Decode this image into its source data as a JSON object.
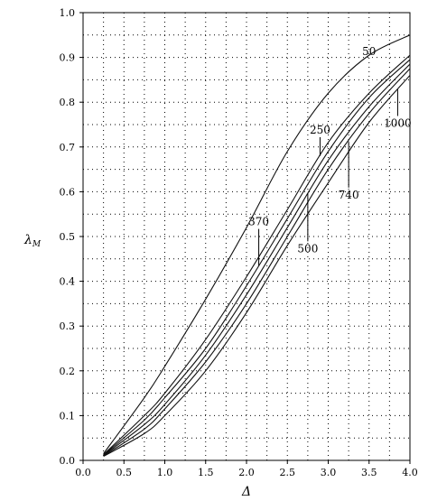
{
  "chart_data": {
    "type": "line",
    "xlabel": "Δ",
    "ylabel_main": "λ",
    "ylabel_sub": "M",
    "xlim": [
      0.0,
      4.0
    ],
    "ylim": [
      0.0,
      1.0
    ],
    "grid": true,
    "grid_style": "dotted",
    "x_ticks": [
      "0.0",
      "0.5",
      "1.0",
      "1.5",
      "2.0",
      "2.5",
      "3.0",
      "3.5",
      "4.0"
    ],
    "y_ticks": [
      "0.0",
      "0.1",
      "0.2",
      "0.3",
      "0.4",
      "0.5",
      "0.6",
      "0.7",
      "0.8",
      "0.9",
      "1.0"
    ],
    "series": [
      {
        "name": "50",
        "x": [
          0.25,
          0.75,
          1.0,
          1.5,
          2.0,
          2.5,
          3.0,
          3.5,
          4.0
        ],
        "values": [
          0.015,
          0.14,
          0.21,
          0.36,
          0.52,
          0.69,
          0.82,
          0.905,
          0.95
        ]
      },
      {
        "name": "250",
        "x": [
          0.25,
          0.75,
          1.0,
          1.5,
          2.0,
          2.5,
          3.0,
          3.5,
          4.0
        ],
        "values": [
          0.013,
          0.1,
          0.15,
          0.27,
          0.41,
          0.56,
          0.71,
          0.82,
          0.905
        ]
      },
      {
        "name": "370",
        "x": [
          0.25,
          0.75,
          1.0,
          1.5,
          2.0,
          2.5,
          3.0,
          3.5,
          4.0
        ],
        "values": [
          0.012,
          0.09,
          0.14,
          0.25,
          0.39,
          0.54,
          0.69,
          0.81,
          0.895
        ]
      },
      {
        "name": "500",
        "x": [
          0.25,
          0.75,
          1.0,
          1.5,
          2.0,
          2.5,
          3.0,
          3.5,
          4.0
        ],
        "values": [
          0.011,
          0.08,
          0.125,
          0.235,
          0.37,
          0.52,
          0.67,
          0.79,
          0.885
        ]
      },
      {
        "name": "740",
        "x": [
          0.25,
          0.75,
          1.0,
          1.5,
          2.0,
          2.5,
          3.0,
          3.5,
          4.0
        ],
        "values": [
          0.01,
          0.07,
          0.115,
          0.22,
          0.35,
          0.5,
          0.65,
          0.775,
          0.875
        ]
      },
      {
        "name": "1000",
        "x": [
          0.25,
          0.75,
          1.0,
          1.5,
          2.0,
          2.5,
          3.0,
          3.5,
          4.0
        ],
        "values": [
          0.009,
          0.06,
          0.1,
          0.2,
          0.33,
          0.48,
          0.62,
          0.755,
          0.86
        ]
      }
    ],
    "labels": [
      {
        "text": "50",
        "series": "50",
        "lx": 3.5,
        "ly": 0.905
      },
      {
        "text": "250",
        "series": "250",
        "lx": 2.9,
        "ly": 0.73
      },
      {
        "text": "370",
        "series": "370",
        "lx": 2.15,
        "ly": 0.525
      },
      {
        "text": "500",
        "series": "500",
        "lx": 2.75,
        "ly": 0.465
      },
      {
        "text": "740",
        "series": "740",
        "lx": 3.25,
        "ly": 0.585
      },
      {
        "text": "1000",
        "series": "1000",
        "lx": 3.85,
        "ly": 0.745
      }
    ]
  }
}
